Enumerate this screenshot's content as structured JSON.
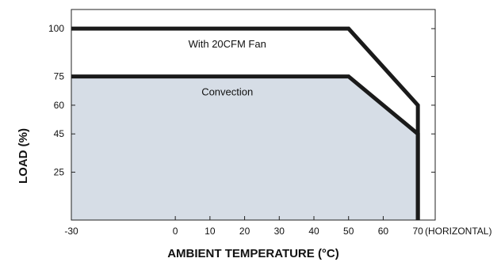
{
  "chart_data": {
    "type": "line",
    "xlabel": "AMBIENT TEMPERATURE (°C)",
    "ylabel": "LOAD (%)",
    "x_note": "(HORIZONTAL)",
    "xlim": [
      -30,
      75
    ],
    "ylim": [
      0,
      110
    ],
    "x_ticks": [
      -30,
      0,
      10,
      20,
      30,
      40,
      50,
      60,
      70
    ],
    "y_ticks": [
      25,
      45,
      60,
      75,
      100
    ],
    "grid": false,
    "series": [
      {
        "name": "With 20CFM Fan",
        "x": [
          -30,
          50,
          70,
          70
        ],
        "y": [
          100,
          100,
          60,
          0
        ],
        "fill": false
      },
      {
        "name": "Convection",
        "x": [
          -30,
          50,
          70,
          70
        ],
        "y": [
          75,
          75,
          45,
          0
        ],
        "fill": true
      }
    ],
    "colors": {
      "line": "#1a1a1a",
      "area_fill": "#d6dde6",
      "frame": "#222222"
    }
  }
}
